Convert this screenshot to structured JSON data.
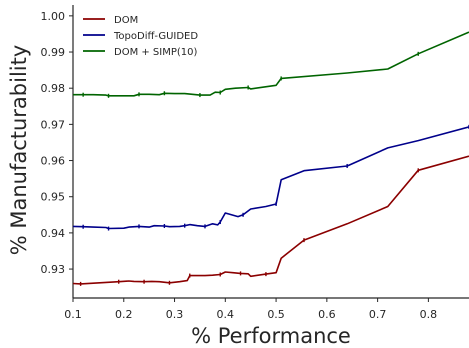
{
  "chart_data": {
    "type": "line",
    "xlabel": "% Performance",
    "ylabel": "% Manufacturability",
    "xlim": [
      0.1,
      0.88
    ],
    "ylim": [
      0.922,
      1.003
    ],
    "xticks": [
      0.1,
      0.2,
      0.3,
      0.4,
      0.5,
      0.6,
      0.7,
      0.8
    ],
    "xtick_labels": [
      "0.1",
      "0.2",
      "0.3",
      "0.4",
      "0.5",
      "0.6",
      "0.7",
      "0.8"
    ],
    "yticks": [
      0.93,
      0.94,
      0.95,
      0.96,
      0.97,
      0.98,
      0.99,
      1.0
    ],
    "ytick_labels": [
      "0.93",
      "0.94",
      "0.95",
      "0.96",
      "0.97",
      "0.98",
      "0.99",
      "1.00"
    ],
    "grid": false,
    "legend_position": "top-left",
    "series": [
      {
        "name": "DOM",
        "color": "#8b0000",
        "x": [
          0.1,
          0.115,
          0.14,
          0.165,
          0.19,
          0.21,
          0.22,
          0.24,
          0.255,
          0.27,
          0.29,
          0.31,
          0.325,
          0.33,
          0.36,
          0.375,
          0.39,
          0.4,
          0.415,
          0.43,
          0.445,
          0.45,
          0.48,
          0.5,
          0.51,
          0.555,
          0.64,
          0.72,
          0.78,
          0.88
        ],
        "y": [
          0.926,
          0.9259,
          0.9261,
          0.9263,
          0.9265,
          0.9267,
          0.9266,
          0.9265,
          0.9266,
          0.9265,
          0.9262,
          0.9265,
          0.9268,
          0.9282,
          0.9282,
          0.9283,
          0.9285,
          0.9292,
          0.929,
          0.9288,
          0.9287,
          0.928,
          0.9286,
          0.929,
          0.933,
          0.938,
          0.9425,
          0.9473,
          0.9573,
          0.9612
        ]
      },
      {
        "name": "TopoDiff-GUIDED",
        "color": "#00008b",
        "x": [
          0.1,
          0.12,
          0.14,
          0.165,
          0.17,
          0.2,
          0.21,
          0.23,
          0.25,
          0.26,
          0.28,
          0.29,
          0.31,
          0.32,
          0.33,
          0.345,
          0.36,
          0.375,
          0.385,
          0.39,
          0.4,
          0.425,
          0.435,
          0.45,
          0.48,
          0.5,
          0.51,
          0.555,
          0.64,
          0.72,
          0.78,
          0.88
        ],
        "y": [
          0.9418,
          0.9417,
          0.9416,
          0.9415,
          0.9412,
          0.9413,
          0.9416,
          0.9418,
          0.9416,
          0.942,
          0.9419,
          0.9417,
          0.9418,
          0.942,
          0.9423,
          0.942,
          0.9418,
          0.9425,
          0.9422,
          0.943,
          0.9455,
          0.9445,
          0.945,
          0.9466,
          0.9473,
          0.948,
          0.9547,
          0.9572,
          0.9585,
          0.9635,
          0.9655,
          0.9693
        ]
      },
      {
        "name": "DOM + SIMP(10)",
        "color": "#006400",
        "x": [
          0.1,
          0.12,
          0.14,
          0.165,
          0.17,
          0.2,
          0.22,
          0.23,
          0.25,
          0.27,
          0.28,
          0.3,
          0.32,
          0.35,
          0.37,
          0.38,
          0.39,
          0.4,
          0.42,
          0.445,
          0.45,
          0.5,
          0.51,
          0.64,
          0.72,
          0.78,
          0.88
        ],
        "y": [
          0.9782,
          0.9782,
          0.9782,
          0.9781,
          0.9779,
          0.9779,
          0.9779,
          0.9783,
          0.9783,
          0.9782,
          0.9786,
          0.9785,
          0.9785,
          0.9781,
          0.9781,
          0.9789,
          0.9788,
          0.9797,
          0.98,
          0.9802,
          0.9798,
          0.9808,
          0.9827,
          0.9842,
          0.9853,
          0.9895,
          0.9955
        ]
      }
    ]
  }
}
